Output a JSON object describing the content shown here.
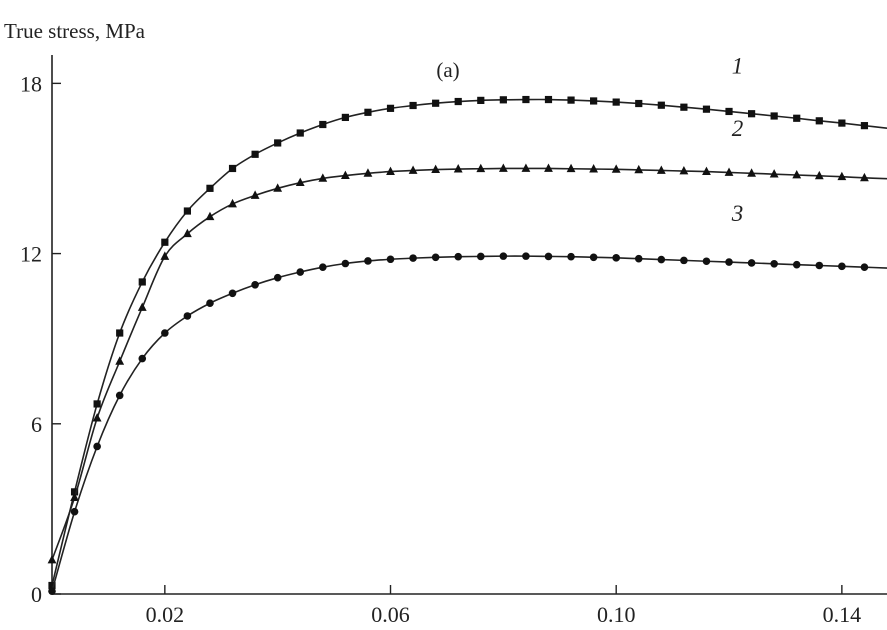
{
  "chart_data": {
    "type": "line",
    "title": "",
    "annotation": "(a)",
    "xlabel": "",
    "ylabel": "True stress, MPa",
    "xlim": [
      0,
      0.148
    ],
    "ylim": [
      0,
      19
    ],
    "x_ticks": [
      0.02,
      0.06,
      0.1,
      0.14
    ],
    "x_tick_labels": [
      "0.02",
      "0.06",
      "0.10",
      "0.14"
    ],
    "y_ticks": [
      0,
      6,
      12,
      18
    ],
    "y_tick_labels": [
      "0",
      "6",
      "12",
      "18"
    ],
    "grid": false,
    "series": [
      {
        "name": "1",
        "marker": "square",
        "x": [
          0,
          0.004,
          0.008,
          0.012,
          0.016,
          0.02,
          0.024,
          0.028,
          0.032,
          0.036,
          0.04,
          0.044,
          0.048,
          0.052,
          0.056,
          0.06,
          0.064,
          0.068,
          0.072,
          0.076,
          0.08,
          0.084,
          0.088,
          0.092,
          0.096,
          0.1,
          0.104,
          0.108,
          0.112,
          0.116,
          0.12,
          0.124,
          0.128,
          0.132,
          0.136,
          0.14,
          0.144,
          0.148
        ],
        "y": [
          0.3,
          3.6,
          6.7,
          9.2,
          11.0,
          12.4,
          13.5,
          14.3,
          15.0,
          15.5,
          15.9,
          16.25,
          16.55,
          16.8,
          16.98,
          17.12,
          17.22,
          17.3,
          17.36,
          17.4,
          17.42,
          17.43,
          17.43,
          17.41,
          17.38,
          17.34,
          17.29,
          17.23,
          17.16,
          17.09,
          17.01,
          16.93,
          16.85,
          16.77,
          16.68,
          16.6,
          16.51,
          16.42
        ]
      },
      {
        "name": "2",
        "marker": "triangle",
        "x": [
          0,
          0.004,
          0.008,
          0.012,
          0.016,
          0.02,
          0.024,
          0.028,
          0.032,
          0.036,
          0.04,
          0.044,
          0.048,
          0.052,
          0.056,
          0.06,
          0.064,
          0.068,
          0.072,
          0.076,
          0.08,
          0.084,
          0.088,
          0.092,
          0.096,
          0.1,
          0.104,
          0.108,
          0.112,
          0.116,
          0.12,
          0.124,
          0.128,
          0.132,
          0.136,
          0.14,
          0.144,
          0.148
        ],
        "y": [
          1.2,
          3.4,
          6.2,
          8.2,
          10.1,
          11.9,
          12.7,
          13.3,
          13.75,
          14.05,
          14.3,
          14.5,
          14.65,
          14.75,
          14.83,
          14.89,
          14.93,
          14.96,
          14.98,
          14.99,
          15.0,
          15.0,
          15.0,
          14.99,
          14.98,
          14.97,
          14.95,
          14.93,
          14.91,
          14.89,
          14.86,
          14.83,
          14.8,
          14.77,
          14.74,
          14.71,
          14.67,
          14.64
        ]
      },
      {
        "name": "3",
        "marker": "circle",
        "x": [
          0,
          0.004,
          0.008,
          0.012,
          0.016,
          0.02,
          0.024,
          0.028,
          0.032,
          0.036,
          0.04,
          0.044,
          0.048,
          0.052,
          0.056,
          0.06,
          0.064,
          0.068,
          0.072,
          0.076,
          0.08,
          0.084,
          0.088,
          0.092,
          0.096,
          0.1,
          0.104,
          0.108,
          0.112,
          0.116,
          0.12,
          0.124,
          0.128,
          0.132,
          0.136,
          0.14,
          0.144,
          0.148
        ],
        "y": [
          0.1,
          2.9,
          5.2,
          7.0,
          8.3,
          9.2,
          9.8,
          10.25,
          10.6,
          10.9,
          11.15,
          11.35,
          11.52,
          11.65,
          11.74,
          11.8,
          11.84,
          11.87,
          11.89,
          11.9,
          11.91,
          11.91,
          11.9,
          11.89,
          11.87,
          11.85,
          11.82,
          11.79,
          11.76,
          11.73,
          11.7,
          11.67,
          11.64,
          11.61,
          11.58,
          11.55,
          11.52,
          11.49
        ]
      }
    ]
  }
}
